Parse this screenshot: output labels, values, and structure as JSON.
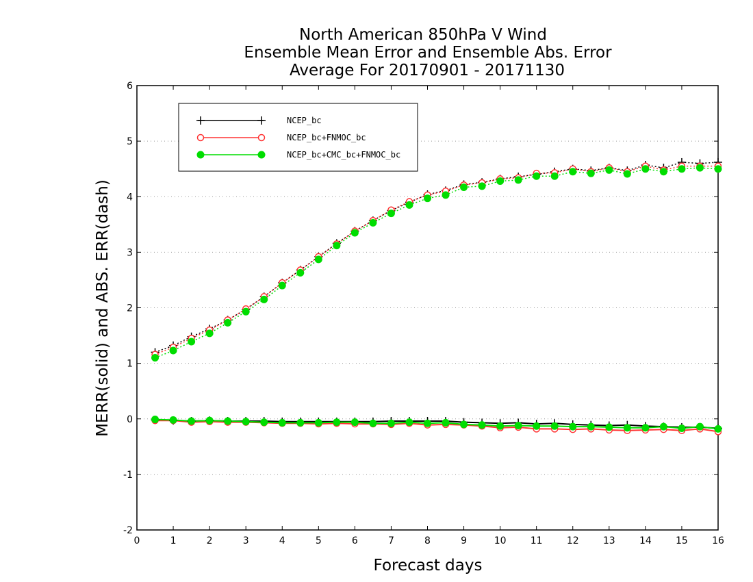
{
  "chart_data": {
    "type": "line",
    "title": [
      "North American 850hPa V Wind",
      "Ensemble Mean Error and Ensemble Abs. Error",
      "Average For 20170901 - 20171130"
    ],
    "xlabel": "Forecast days",
    "ylabel": "MERR(solid) and ABS. ERR(dash)",
    "xlim": [
      0,
      16
    ],
    "ylim": [
      -2,
      6
    ],
    "xticks": [
      "0",
      "1",
      "2",
      "3",
      "4",
      "5",
      "6",
      "7",
      "8",
      "9",
      "10",
      "11",
      "12",
      "13",
      "14",
      "15",
      "16"
    ],
    "yticks": [
      "-2",
      "-1",
      "0",
      "1",
      "2",
      "3",
      "4",
      "5",
      "6"
    ],
    "grid": "horizontal dotted",
    "legend_position": "top-left",
    "x": [
      0.5,
      1.0,
      1.5,
      2.0,
      2.5,
      3.0,
      3.5,
      4.0,
      4.5,
      5.0,
      5.5,
      6.0,
      6.5,
      7.0,
      7.5,
      8.0,
      8.5,
      9.0,
      9.5,
      10.0,
      10.5,
      11.0,
      11.5,
      12.0,
      12.5,
      13.0,
      13.5,
      14.0,
      14.5,
      15.0,
      15.5,
      16.0
    ],
    "series": [
      {
        "name": "NCEP_bc",
        "color": "#000000",
        "marker": "plus",
        "abs_err": [
          1.2,
          1.32,
          1.48,
          1.62,
          1.78,
          1.97,
          2.2,
          2.45,
          2.68,
          2.92,
          3.16,
          3.38,
          3.57,
          3.75,
          3.9,
          4.04,
          4.11,
          4.22,
          4.26,
          4.32,
          4.36,
          4.4,
          4.45,
          4.5,
          4.47,
          4.52,
          4.47,
          4.57,
          4.52,
          4.62,
          4.6,
          4.62
        ],
        "mean_err": [
          -0.02,
          -0.03,
          -0.04,
          -0.03,
          -0.04,
          -0.04,
          -0.04,
          -0.05,
          -0.05,
          -0.05,
          -0.05,
          -0.05,
          -0.05,
          -0.04,
          -0.04,
          -0.04,
          -0.04,
          -0.06,
          -0.07,
          -0.08,
          -0.07,
          -0.09,
          -0.08,
          -0.1,
          -0.11,
          -0.12,
          -0.11,
          -0.13,
          -0.14,
          -0.15,
          -0.15,
          -0.17
        ]
      },
      {
        "name": "NCEP_bc+FNMOC_bc",
        "color": "#ff3333",
        "marker": "open-circle",
        "abs_err": [
          1.16,
          1.29,
          1.45,
          1.6,
          1.78,
          1.98,
          2.2,
          2.45,
          2.68,
          2.92,
          3.15,
          3.38,
          3.57,
          3.76,
          3.91,
          4.03,
          4.1,
          4.21,
          4.25,
          4.32,
          4.34,
          4.42,
          4.43,
          4.5,
          4.45,
          4.52,
          4.45,
          4.55,
          4.48,
          4.55,
          4.55,
          4.55
        ],
        "mean_err": [
          -0.03,
          -0.03,
          -0.06,
          -0.05,
          -0.06,
          -0.06,
          -0.07,
          -0.08,
          -0.08,
          -0.09,
          -0.08,
          -0.09,
          -0.09,
          -0.1,
          -0.08,
          -0.11,
          -0.1,
          -0.11,
          -0.13,
          -0.16,
          -0.15,
          -0.18,
          -0.18,
          -0.19,
          -0.18,
          -0.2,
          -0.21,
          -0.2,
          -0.19,
          -0.21,
          -0.18,
          -0.23
        ]
      },
      {
        "name": "NCEP_bc+CMC_bc+FNMOC_bc",
        "color": "#00dd00",
        "marker": "filled-circle",
        "abs_err": [
          1.1,
          1.23,
          1.39,
          1.54,
          1.73,
          1.93,
          2.15,
          2.4,
          2.63,
          2.87,
          3.12,
          3.35,
          3.53,
          3.7,
          3.85,
          3.97,
          4.03,
          4.17,
          4.19,
          4.28,
          4.3,
          4.37,
          4.37,
          4.45,
          4.42,
          4.48,
          4.41,
          4.5,
          4.45,
          4.5,
          4.52,
          4.5
        ],
        "mean_err": [
          -0.01,
          -0.02,
          -0.04,
          -0.03,
          -0.04,
          -0.05,
          -0.06,
          -0.07,
          -0.07,
          -0.07,
          -0.06,
          -0.06,
          -0.08,
          -0.08,
          -0.06,
          -0.08,
          -0.07,
          -0.1,
          -0.11,
          -0.13,
          -0.12,
          -0.13,
          -0.13,
          -0.14,
          -0.14,
          -0.15,
          -0.16,
          -0.16,
          -0.14,
          -0.17,
          -0.14,
          -0.18
        ]
      }
    ]
  }
}
